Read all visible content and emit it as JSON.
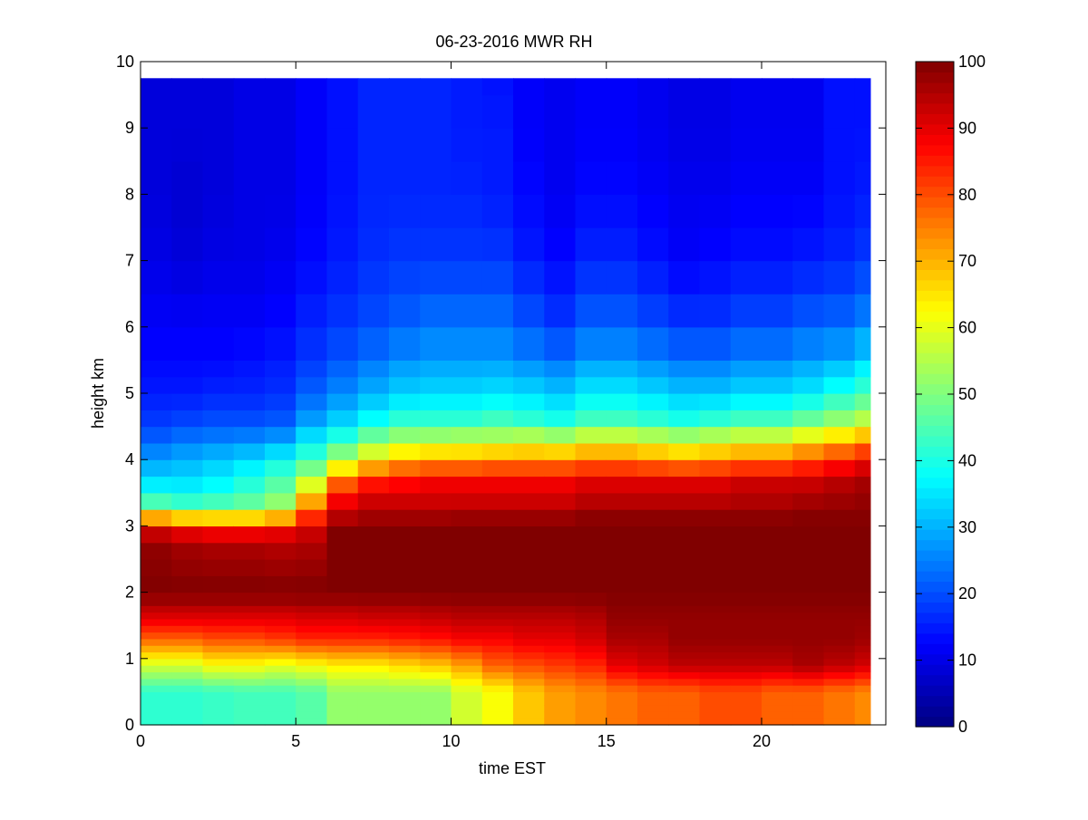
{
  "chart_data": {
    "type": "heatmap",
    "title": "06-23-2016 MWR RH",
    "xlabel": "time EST",
    "ylabel": "height km",
    "xlim": [
      0,
      24
    ],
    "ylim": [
      0,
      10
    ],
    "x_ticks": [
      0,
      5,
      10,
      15,
      20
    ],
    "y_ticks": [
      0,
      1,
      2,
      3,
      4,
      5,
      6,
      7,
      8,
      9,
      10
    ],
    "colorbar": {
      "colormap": "jet",
      "range": [
        0,
        100
      ],
      "ticks": [
        0,
        10,
        20,
        30,
        40,
        50,
        60,
        70,
        80,
        90,
        100
      ]
    },
    "data_extent": {
      "time": [
        0,
        23.5
      ],
      "height": [
        0,
        9.75
      ]
    },
    "time_bins": [
      0,
      1,
      2,
      3,
      4,
      5,
      6,
      7,
      8,
      9,
      10,
      11,
      12,
      13,
      14,
      15,
      16,
      17,
      18,
      19,
      20,
      21,
      22,
      23
    ],
    "height_bins": [
      0,
      0.1,
      0.2,
      0.3,
      0.4,
      0.5,
      0.6,
      0.7,
      0.8,
      0.9,
      1.0,
      1.1,
      1.2,
      1.3,
      1.4,
      1.5,
      1.6,
      1.7,
      1.8,
      2.0,
      2.25,
      2.5,
      2.75,
      3.0,
      3.25,
      3.5,
      3.75,
      4.0,
      4.25,
      4.5,
      4.75,
      5.0,
      5.25,
      5.5,
      6.0,
      6.5,
      7.0,
      7.5,
      8.0,
      8.5,
      9.0,
      9.5
    ],
    "profiles": {
      "heights": [
        0,
        0.5,
        0.9,
        1.3,
        1.6,
        2.0,
        2.8,
        3.0,
        3.2,
        3.4,
        3.7,
        4.0,
        4.3,
        4.6,
        5.0,
        5.5,
        6.0,
        7.0,
        8.0,
        9.0,
        9.75
      ],
      "columns": [
        [
          42,
          42,
          58,
          78,
          90,
          100,
          98,
          86,
          62,
          42,
          34,
          28,
          22,
          18,
          15,
          13,
          12,
          10,
          9,
          9,
          9
        ],
        [
          42,
          42,
          58,
          78,
          90,
          100,
          96,
          82,
          58,
          40,
          34,
          30,
          24,
          19,
          15,
          13,
          12,
          9,
          8,
          9,
          9
        ],
        [
          43,
          43,
          62,
          80,
          90,
          100,
          95,
          80,
          58,
          42,
          36,
          32,
          25,
          20,
          16,
          13,
          12,
          10,
          9,
          9,
          9
        ],
        [
          44,
          44,
          62,
          80,
          90,
          100,
          95,
          80,
          58,
          45,
          40,
          34,
          26,
          20,
          16,
          14,
          12,
          10,
          10,
          10,
          10
        ],
        [
          44,
          44,
          60,
          82,
          90,
          100,
          94,
          84,
          62,
          50,
          45,
          38,
          28,
          21,
          17,
          15,
          13,
          11,
          10,
          10,
          10
        ],
        [
          46,
          46,
          62,
          84,
          91,
          100,
          95,
          90,
          80,
          70,
          56,
          44,
          36,
          28,
          22,
          18,
          16,
          13,
          12,
          12,
          12
        ],
        [
          52,
          52,
          64,
          84,
          91,
          100,
          100,
          100,
          92,
          88,
          76,
          55,
          42,
          33,
          26,
          21,
          18,
          15,
          14,
          14,
          14
        ],
        [
          52,
          52,
          64,
          84,
          92,
          100,
          100,
          100,
          95,
          92,
          84,
          64,
          50,
          38,
          30,
          24,
          20,
          17,
          16,
          16,
          16
        ],
        [
          52,
          52,
          66,
          85,
          92,
          100,
          100,
          100,
          95,
          92,
          86,
          70,
          54,
          42,
          33,
          27,
          22,
          18,
          16,
          16,
          16
        ],
        [
          52,
          52,
          68,
          86,
          93,
          100,
          100,
          100,
          95,
          92,
          88,
          72,
          55,
          42,
          34,
          28,
          24,
          18,
          16,
          16,
          16
        ],
        [
          58,
          58,
          72,
          88,
          94,
          100,
          100,
          100,
          96,
          92,
          88,
          72,
          56,
          42,
          34,
          28,
          24,
          18,
          16,
          15,
          15
        ],
        [
          62,
          62,
          78,
          88,
          94,
          100,
          100,
          100,
          96,
          92,
          88,
          74,
          56,
          44,
          35,
          28,
          24,
          18,
          15,
          15,
          14
        ],
        [
          68,
          68,
          80,
          90,
          94,
          100,
          100,
          100,
          96,
          92,
          88,
          74,
          58,
          42,
          34,
          26,
          21,
          15,
          13,
          12,
          12
        ],
        [
          72,
          72,
          82,
          90,
          94,
          100,
          100,
          100,
          96,
          92,
          88,
          74,
          56,
          40,
          32,
          24,
          18,
          13,
          11,
          11,
          11
        ],
        [
          74,
          74,
          84,
          92,
          95,
          100,
          100,
          100,
          98,
          94,
          90,
          76,
          60,
          44,
          36,
          28,
          22,
          16,
          13,
          12,
          12
        ],
        [
          76,
          76,
          90,
          96,
          98,
          100,
          100,
          100,
          98,
          94,
          90,
          76,
          60,
          44,
          36,
          28,
          22,
          16,
          13,
          12,
          12
        ],
        [
          78,
          78,
          92,
          96,
          98,
          100,
          100,
          100,
          98,
          94,
          90,
          74,
          58,
          42,
          34,
          26,
          20,
          14,
          12,
          11,
          11
        ],
        [
          78,
          78,
          94,
          98,
          98,
          100,
          100,
          100,
          98,
          94,
          90,
          72,
          56,
          40,
          32,
          24,
          18,
          12,
          11,
          10,
          10
        ],
        [
          80,
          80,
          94,
          98,
          98,
          100,
          100,
          100,
          98,
          94,
          90,
          74,
          58,
          42,
          32,
          24,
          18,
          13,
          11,
          10,
          10
        ],
        [
          80,
          80,
          94,
          98,
          98,
          100,
          100,
          100,
          98,
          95,
          92,
          76,
          60,
          44,
          34,
          26,
          20,
          14,
          12,
          11,
          11
        ],
        [
          78,
          78,
          94,
          98,
          98,
          100,
          100,
          100,
          98,
          95,
          92,
          76,
          60,
          44,
          34,
          26,
          20,
          14,
          12,
          11,
          11
        ],
        [
          78,
          78,
          96,
          98,
          98,
          100,
          100,
          100,
          99,
          96,
          92,
          80,
          64,
          48,
          36,
          28,
          22,
          15,
          12,
          11,
          11
        ],
        [
          76,
          76,
          94,
          98,
          98,
          100,
          100,
          100,
          99,
          97,
          94,
          84,
          68,
          52,
          40,
          30,
          23,
          16,
          14,
          14,
          14
        ],
        [
          74,
          74,
          92,
          97,
          98,
          100,
          100,
          100,
          99,
          98,
          96,
          88,
          72,
          56,
          44,
          34,
          26,
          18,
          15,
          14,
          14
        ]
      ]
    }
  }
}
